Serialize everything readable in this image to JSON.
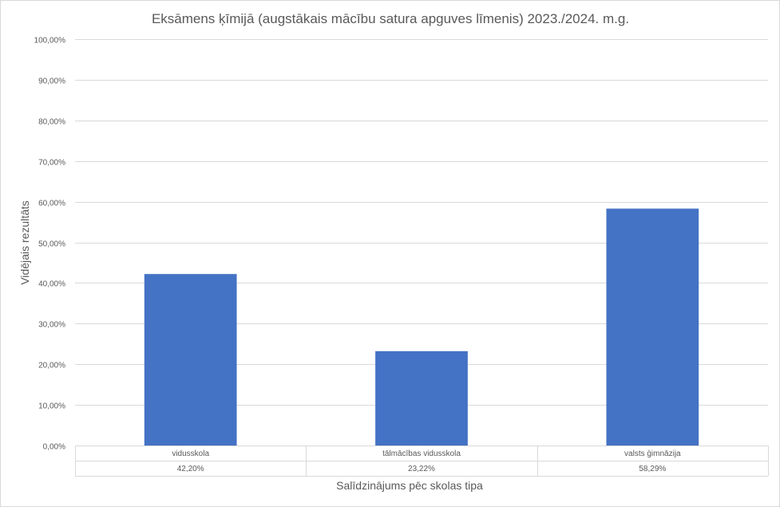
{
  "chart_data": {
    "type": "bar",
    "title": "Eksāmens ķīmijā (augstākais mācību satura apguves līmenis) 2023./2024. m.g.",
    "xlabel": "Salīdzinājums pēc skolas tipa",
    "ylabel": "Vidējais rezultāts",
    "categories": [
      "vidusskola",
      "tālmācības vidusskola",
      "valsts ģimnāzija"
    ],
    "values": [
      42.2,
      23.22,
      58.29
    ],
    "value_labels": [
      "42,20%",
      "23,22%",
      "58,29%"
    ],
    "ylim": [
      0,
      100
    ],
    "y_ticks": [
      0,
      10,
      20,
      30,
      40,
      50,
      60,
      70,
      80,
      90,
      100
    ],
    "y_tick_labels": [
      "0,00%",
      "10,00%",
      "20,00%",
      "30,00%",
      "40,00%",
      "50,00%",
      "60,00%",
      "70,00%",
      "80,00%",
      "90,00%",
      "100,00%"
    ],
    "grid": true,
    "legend": "none",
    "data_table": true,
    "bar_color": "#4472c4"
  }
}
